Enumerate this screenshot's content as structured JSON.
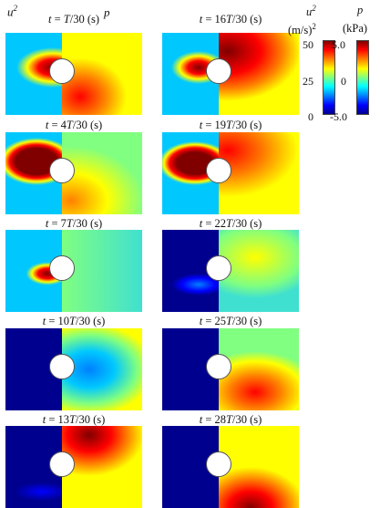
{
  "headers": {
    "velocity": "u",
    "velocity_sup": "2",
    "pressure": "p"
  },
  "panels": [
    {
      "pre": "t",
      "num": " = ",
      "T": "T",
      "post": "/30 (s)",
      "label": "t = T/30 (s)",
      "k": ""
    },
    {
      "label": "t = 16T/30 (s)",
      "k": "16"
    },
    {
      "label": "t = 4T/30 (s)",
      "k": "4"
    },
    {
      "label": "t = 19T/30 (s)",
      "k": "19"
    },
    {
      "label": "t = 7T/30 (s)",
      "k": "7"
    },
    {
      "label": "t = 22T/30 (s)",
      "k": "22"
    },
    {
      "label": "t = 10T/30 (s)",
      "k": "10"
    },
    {
      "label": "t = 25T/30 (s)",
      "k": "25"
    },
    {
      "label": "t = 13T/30 (s)",
      "k": "13"
    },
    {
      "label": "t = 28T/30 (s)",
      "k": "28"
    }
  ],
  "colorbars": {
    "velocity": {
      "title": "u",
      "title_sup": "2",
      "unit": "(m/s)",
      "unit_sup": "2",
      "max": "50",
      "mid": "25",
      "min": "0"
    },
    "pressure": {
      "title": "p",
      "unit": "(kPa)",
      "max": "5.0",
      "mid": "0",
      "min": "-5.0"
    }
  },
  "colors": {
    "jet_low": "#00008f",
    "jet_high": "#800000"
  }
}
